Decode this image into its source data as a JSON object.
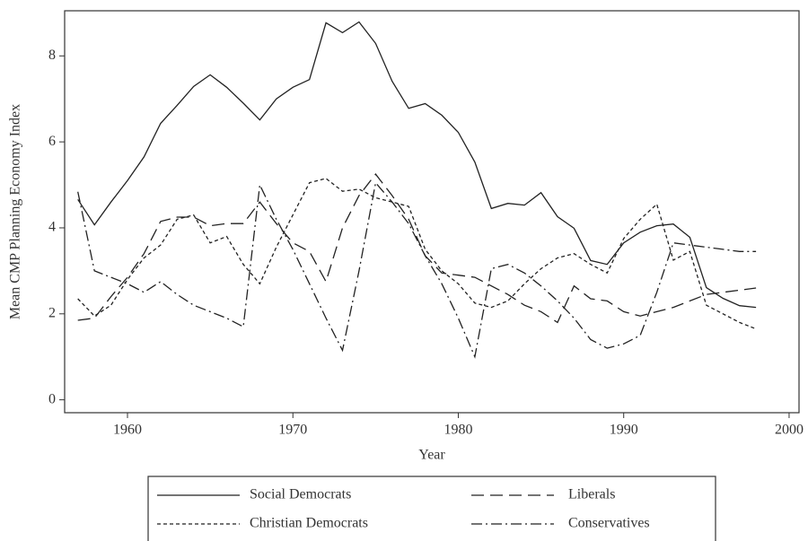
{
  "chart_data": {
    "type": "line",
    "x_label": "Year",
    "y_label": "Mean CMP Planning Economy Index",
    "x": [
      1957,
      1958,
      1959,
      1960,
      1961,
      1962,
      1963,
      1964,
      1965,
      1966,
      1967,
      1968,
      1969,
      1970,
      1971,
      1972,
      1973,
      1974,
      1975,
      1976,
      1977,
      1978,
      1979,
      1980,
      1981,
      1982,
      1983,
      1984,
      1985,
      1986,
      1987,
      1988,
      1989,
      1990,
      1991,
      1992,
      1993,
      1994,
      1995,
      1996,
      1997,
      1998
    ],
    "xlim": [
      1956.2,
      2000.6
    ],
    "xticks": [
      1960,
      1970,
      1980,
      1990,
      2000
    ],
    "ylim": [
      -0.3,
      9.05
    ],
    "yticks": [
      0,
      2,
      4,
      6,
      8
    ],
    "legend": "bottom",
    "series": [
      {
        "name": "Social Democrats",
        "color": "#222222",
        "dash": "solid",
        "values": [
          4.66,
          4.07,
          4.6,
          5.1,
          5.65,
          6.43,
          6.85,
          7.29,
          7.56,
          7.27,
          6.9,
          6.51,
          7.0,
          7.27,
          7.45,
          8.77,
          8.54,
          8.79,
          8.29,
          7.41,
          6.78,
          6.89,
          6.62,
          6.22,
          5.53,
          4.45,
          4.57,
          4.53,
          4.82,
          4.26,
          3.99,
          3.24,
          3.15,
          3.65,
          3.9,
          4.05,
          4.09,
          3.78,
          2.61,
          2.36,
          2.19,
          2.15
        ]
      },
      {
        "name": "Liberals",
        "color": "#222222",
        "dash": "long",
        "values": [
          1.85,
          1.9,
          2.4,
          2.85,
          3.4,
          4.15,
          4.25,
          4.25,
          4.05,
          4.1,
          4.1,
          4.6,
          4.1,
          3.65,
          3.45,
          2.75,
          4.0,
          4.75,
          5.25,
          4.75,
          4.2,
          3.35,
          2.95,
          2.9,
          2.85,
          2.65,
          2.45,
          2.2,
          2.05,
          1.8,
          2.65,
          2.35,
          2.3,
          2.05,
          1.95,
          2.05,
          2.15,
          2.3,
          2.45,
          2.5,
          2.55,
          2.6
        ]
      },
      {
        "name": "Christian Democrats",
        "color": "#222222",
        "dash": "short",
        "values": [
          2.35,
          1.95,
          2.2,
          2.8,
          3.3,
          3.6,
          4.2,
          4.3,
          3.65,
          3.8,
          3.15,
          2.7,
          3.55,
          4.3,
          5.05,
          5.15,
          4.85,
          4.9,
          4.7,
          4.6,
          4.5,
          3.5,
          3.0,
          2.7,
          2.25,
          2.15,
          2.3,
          2.7,
          3.05,
          3.3,
          3.4,
          3.15,
          2.95,
          3.75,
          4.2,
          4.55,
          3.25,
          3.45,
          2.2,
          2.0,
          1.8,
          1.65
        ]
      },
      {
        "name": "Conservatives",
        "color": "#222222",
        "dash": "dashdot",
        "values": [
          4.84,
          3.0,
          2.85,
          2.7,
          2.5,
          2.75,
          2.45,
          2.2,
          2.05,
          1.9,
          1.7,
          5.0,
          4.2,
          3.5,
          2.7,
          1.9,
          1.15,
          3.0,
          5.05,
          4.6,
          4.1,
          3.35,
          2.7,
          1.9,
          1.0,
          3.05,
          3.15,
          2.95,
          2.65,
          2.3,
          1.9,
          1.4,
          1.2,
          1.3,
          1.5,
          2.5,
          3.65,
          3.6,
          3.55,
          3.5,
          3.45,
          3.45
        ]
      }
    ]
  }
}
